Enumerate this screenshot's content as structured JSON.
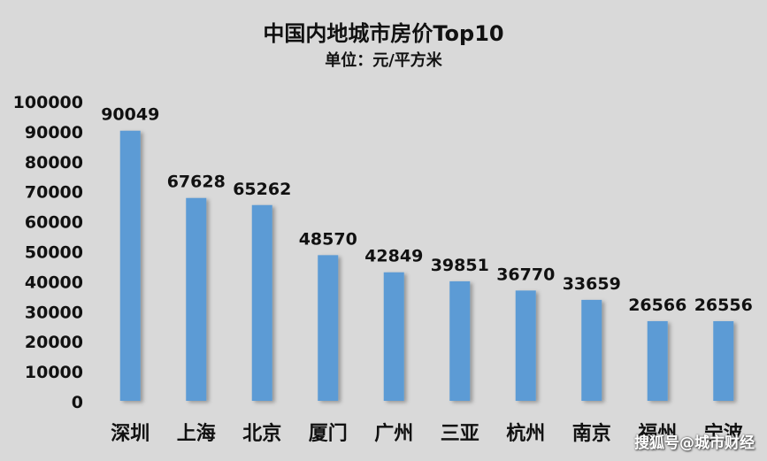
{
  "chart_data": {
    "type": "bar",
    "title": "中国内地城市房价Top10",
    "subtitle": "单位：元/平方米",
    "categories": [
      "深圳",
      "上海",
      "北京",
      "厦门",
      "广州",
      "三亚",
      "杭州",
      "南京",
      "福州",
      "宁波"
    ],
    "values": [
      90049,
      67628,
      65262,
      48570,
      42849,
      39851,
      36770,
      33659,
      26566,
      26556
    ],
    "ylim": [
      0,
      100000
    ],
    "yticks": [
      0,
      10000,
      20000,
      30000,
      40000,
      50000,
      60000,
      70000,
      80000,
      90000,
      100000
    ],
    "grid": false,
    "legend": "none",
    "bar_color": "#5b9bd5",
    "background": "#d9d9d9"
  },
  "watermark": "搜狐号@城市财经"
}
